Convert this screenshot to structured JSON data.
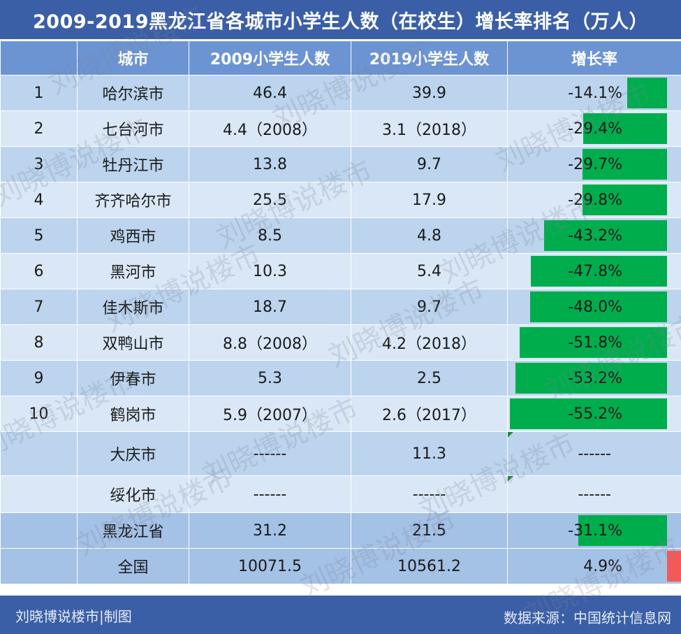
{
  "title": "2009-2019黑龙江省各城市小学生人数（在校生）增长率排名（万人）",
  "headers": [
    "",
    "城市",
    "2009小学生人数",
    "2019小学生人数",
    "增长率"
  ],
  "chart_data": {
    "type": "table",
    "columns": [
      "",
      "城市",
      "2009小学生人数",
      "2019小学生人数",
      "增长率"
    ],
    "rows": [
      {
        "rank": "1",
        "city": "哈尔滨市",
        "v2009": "46.4",
        "v2019": "39.9",
        "rate": "-14.1%",
        "rate_value": -14.1
      },
      {
        "rank": "2",
        "city": "七台河市",
        "v2009": "4.4（2008）",
        "v2019": "3.1（2018）",
        "rate": "-29.4%",
        "rate_value": -29.4
      },
      {
        "rank": "3",
        "city": "牡丹江市",
        "v2009": "13.8",
        "v2019": "9.7",
        "rate": "-29.7%",
        "rate_value": -29.7
      },
      {
        "rank": "4",
        "city": "齐齐哈尔市",
        "v2009": "25.5",
        "v2019": "17.9",
        "rate": "-29.8%",
        "rate_value": -29.8
      },
      {
        "rank": "5",
        "city": "鸡西市",
        "v2009": "8.5",
        "v2019": "4.8",
        "rate": "-43.2%",
        "rate_value": -43.2
      },
      {
        "rank": "6",
        "city": "黑河市",
        "v2009": "10.3",
        "v2019": "5.4",
        "rate": "-47.8%",
        "rate_value": -47.8
      },
      {
        "rank": "7",
        "city": "佳木斯市",
        "v2009": "18.7",
        "v2019": "9.7",
        "rate": "-48.0%",
        "rate_value": -48.0
      },
      {
        "rank": "8",
        "city": "双鸭山市",
        "v2009": "8.8（2008）",
        "v2019": "4.2（2018）",
        "rate": "-51.8%",
        "rate_value": -51.8
      },
      {
        "rank": "9",
        "city": "伊春市",
        "v2009": "5.3",
        "v2019": "2.5",
        "rate": "-53.2%",
        "rate_value": -53.2
      },
      {
        "rank": "10",
        "city": "鹤岗市",
        "v2009": "5.9（2007）",
        "v2019": "2.6（2017）",
        "rate": "-55.2%",
        "rate_value": -55.2
      },
      {
        "rank": "",
        "city": "大庆市",
        "v2009": "------",
        "v2019": "11.3",
        "rate": "------",
        "rate_value": null
      },
      {
        "rank": "",
        "city": "绥化市",
        "v2009": "------",
        "v2019": "------",
        "rate": "------",
        "rate_value": null
      },
      {
        "rank": "",
        "city": "黑龙江省",
        "v2009": "31.2",
        "v2019": "21.5",
        "rate": "-31.1%",
        "rate_value": -31.1
      },
      {
        "rank": "",
        "city": "全国",
        "v2009": "10071.5",
        "v2019": "10561.2",
        "rate": "4.9%",
        "rate_value": 4.9
      }
    ],
    "bar_max_abs": 55.2,
    "colors": {
      "negative": "#00ad4d",
      "positive": "#f25a5a"
    }
  },
  "footer": {
    "left": "刘晓博说楼市|制图",
    "right": "数据来源：中国统计信息网"
  },
  "watermark": "刘晓博说楼市"
}
